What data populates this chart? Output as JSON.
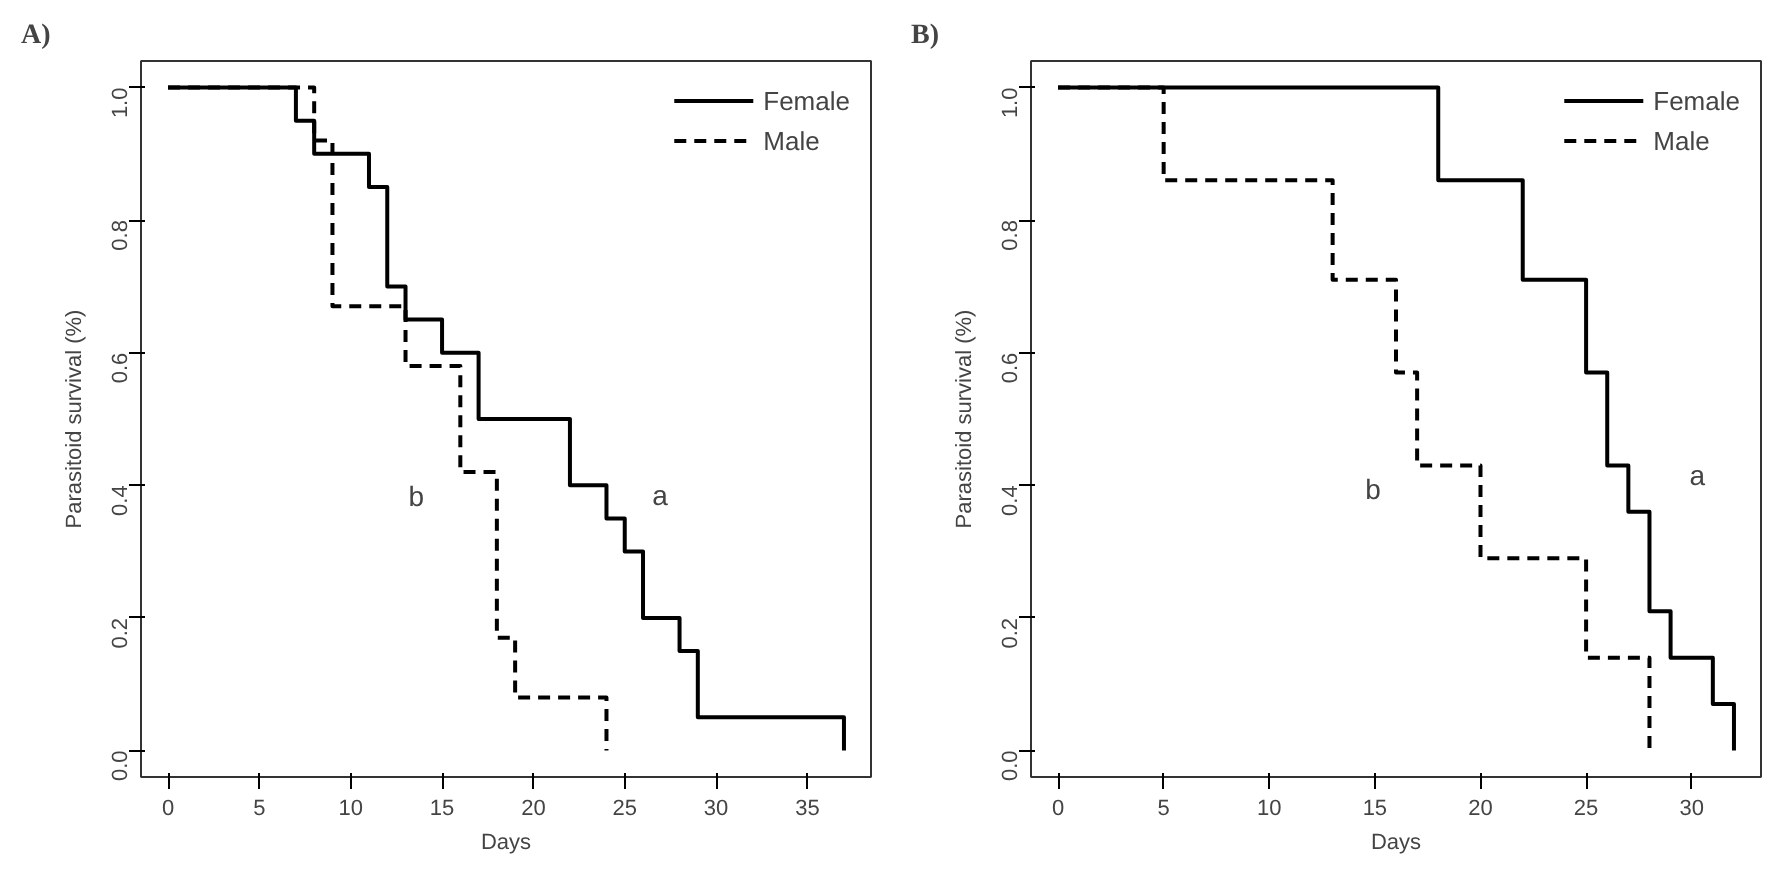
{
  "chart_data": [
    {
      "type": "step",
      "title": "A)",
      "xlabel": "Days",
      "ylabel": "Parasitoid survival (%)",
      "xlim": [
        -1.48,
        38.48
      ],
      "xticks": [
        0,
        5,
        10,
        15,
        20,
        25,
        30,
        35
      ],
      "ylim": [
        -0.04,
        1.04
      ],
      "yticks": [
        {
          "value": 0,
          "label": "0.0"
        },
        {
          "value": 0.2,
          "label": "0.2"
        },
        {
          "value": 0.4,
          "label": "0.4"
        },
        {
          "value": 0.6,
          "label": "0.6"
        },
        {
          "value": 0.8,
          "label": "0.8"
        },
        {
          "value": 1,
          "label": "1.0"
        }
      ],
      "grid": false,
      "legend": "top right",
      "series": [
        {
          "name": "Female",
          "color": "#000000",
          "line_style": "solid",
          "x": [
            0,
            7,
            8,
            11,
            12,
            13,
            15,
            17,
            22,
            24,
            25,
            26,
            28,
            29,
            37
          ],
          "values": [
            1,
            0.95,
            0.9,
            0.85,
            0.7,
            0.65,
            0.6,
            0.5,
            0.4,
            0.35,
            0.3,
            0.2,
            0.15,
            0.05,
            0
          ]
        },
        {
          "name": "Male",
          "color": "#000000",
          "line_style": "dashed",
          "x": [
            0,
            8,
            9,
            13,
            16,
            18,
            19,
            24
          ],
          "values": [
            1,
            0.92,
            0.67,
            0.58,
            0.42,
            0.17,
            0.08,
            0
          ]
        }
      ],
      "annotations": [
        "a",
        "b"
      ]
    },
    {
      "type": "step",
      "title": "B)",
      "xlabel": "Days",
      "ylabel": "Parasitoid survival (%)",
      "xlim": [
        -1.28,
        33.28
      ],
      "xticks": [
        0,
        5,
        10,
        15,
        20,
        25,
        30
      ],
      "ylim": [
        -0.04,
        1.04
      ],
      "yticks": [
        {
          "value": 0,
          "label": "0.0"
        },
        {
          "value": 0.2,
          "label": "0.2"
        },
        {
          "value": 0.4,
          "label": "0.4"
        },
        {
          "value": 0.6,
          "label": "0.6"
        },
        {
          "value": 0.8,
          "label": "0.8"
        },
        {
          "value": 1,
          "label": "1.0"
        }
      ],
      "grid": false,
      "legend": "top right",
      "series": [
        {
          "name": "Female",
          "color": "#000000",
          "line_style": "solid",
          "x": [
            0,
            18,
            22,
            25,
            26,
            27,
            28,
            29,
            31,
            32
          ],
          "values": [
            1,
            0.86,
            0.71,
            0.57,
            0.43,
            0.36,
            0.21,
            0.14,
            0.07,
            0
          ]
        },
        {
          "name": "Male",
          "color": "#000000",
          "line_style": "dashed",
          "x": [
            0,
            5,
            13,
            16,
            17,
            20,
            25,
            28
          ],
          "values": [
            1,
            0.86,
            0.71,
            0.57,
            0.43,
            0.29,
            0.14,
            0
          ]
        }
      ],
      "annotations": [
        "a",
        "b"
      ]
    }
  ]
}
